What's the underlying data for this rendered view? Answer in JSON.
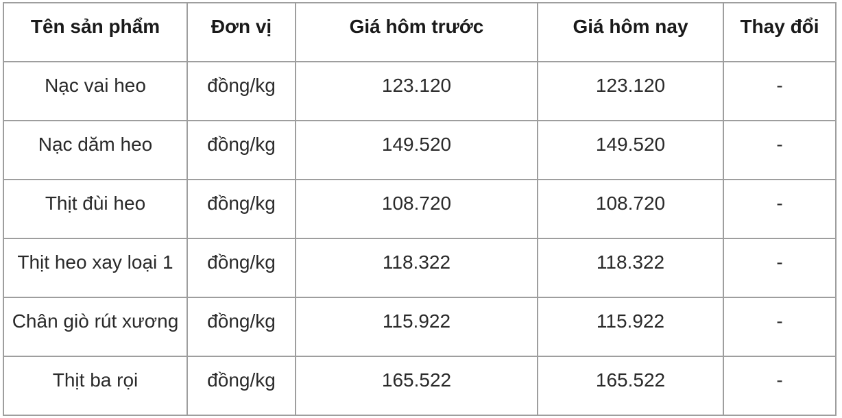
{
  "table": {
    "headers": [
      "Tên sản phẩm",
      "Đơn vị",
      "Giá hôm trước",
      "Giá hôm nay",
      "Thay đổi"
    ],
    "rows": [
      [
        "Nạc vai heo",
        "đồng/kg",
        "123.120",
        "123.120",
        "-"
      ],
      [
        "Nạc dăm heo",
        "đồng/kg",
        "149.520",
        "149.520",
        "-"
      ],
      [
        "Thịt đùi heo",
        "đồng/kg",
        "108.720",
        "108.720",
        "-"
      ],
      [
        "Thịt heo xay loại 1",
        "đồng/kg",
        "118.322",
        "118.322",
        "-"
      ],
      [
        "Chân giò rút xương",
        "đồng/kg",
        "115.922",
        "115.922",
        "-"
      ],
      [
        "Thịt ba rọi",
        "đồng/kg",
        "165.522",
        "165.522",
        "-"
      ]
    ]
  }
}
